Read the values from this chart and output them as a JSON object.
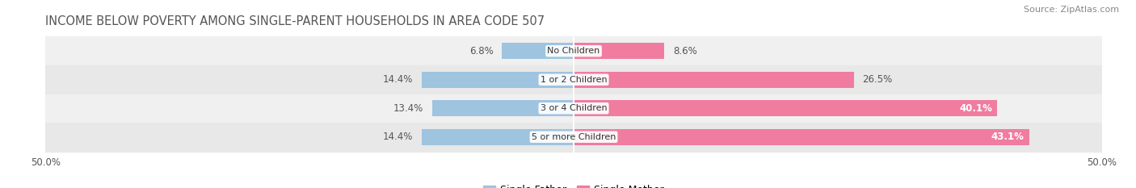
{
  "title": "INCOME BELOW POVERTY AMONG SINGLE-PARENT HOUSEHOLDS IN AREA CODE 507",
  "source": "Source: ZipAtlas.com",
  "categories": [
    "No Children",
    "1 or 2 Children",
    "3 or 4 Children",
    "5 or more Children"
  ],
  "single_father": [
    6.8,
    14.4,
    13.4,
    14.4
  ],
  "single_mother": [
    8.6,
    26.5,
    40.1,
    43.1
  ],
  "father_color": "#9ec4df",
  "mother_color": "#f07ca0",
  "row_bg": "#eeeeee",
  "text_color": "#555555",
  "title_color": "#555555",
  "axis_limit": 50.0,
  "bar_height": 0.55,
  "label_fontsize": 8.5,
  "category_fontsize": 8.0,
  "title_fontsize": 10.5,
  "legend_fontsize": 9,
  "source_fontsize": 8
}
